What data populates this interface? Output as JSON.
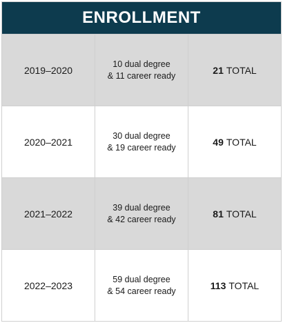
{
  "table": {
    "title": "ENROLLMENT",
    "rows": [
      {
        "year": "2019–2020",
        "dual_degree": "10 dual degree",
        "career_ready": "& 11 career ready",
        "total_number": "21",
        "total_label": "TOTAL",
        "shaded": true
      },
      {
        "year": "2020–2021",
        "dual_degree": "30 dual degree",
        "career_ready": "& 19 career ready",
        "total_number": "49",
        "total_label": "TOTAL",
        "shaded": false
      },
      {
        "year": "2021–2022",
        "dual_degree": "39 dual degree",
        "career_ready": "& 42 career ready",
        "total_number": "81",
        "total_label": "TOTAL",
        "shaded": true
      },
      {
        "year": "2022–2023",
        "dual_degree": "59 dual degree",
        "career_ready": "& 54 career ready",
        "total_number": "113",
        "total_label": "TOTAL",
        "shaded": false
      }
    ]
  },
  "colors": {
    "header_background": "#0d3b4e",
    "shaded_row": "#d9d9d9",
    "border": "#cfcfcf"
  }
}
